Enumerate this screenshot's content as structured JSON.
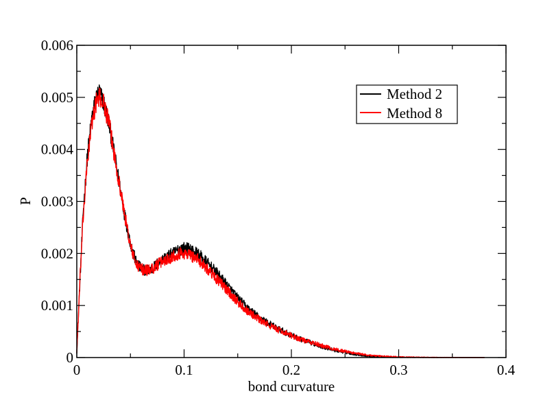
{
  "chart_data": {
    "type": "line",
    "title": "",
    "xlabel": "bond curvature",
    "ylabel": "P",
    "xlim": [
      0,
      0.4
    ],
    "ylim": [
      0,
      0.006
    ],
    "x_ticks": [
      0,
      0.1,
      0.2,
      0.3,
      0.4
    ],
    "x_tick_labels": [
      "0",
      "0.1",
      "0.2",
      "0.3",
      "0.4"
    ],
    "y_ticks": [
      0,
      0.001,
      0.002,
      0.003,
      0.004,
      0.005,
      0.006
    ],
    "y_tick_labels": [
      "0",
      "0.001",
      "0.002",
      "0.003",
      "0.004",
      "0.005",
      "0.006"
    ],
    "grid": false,
    "legend_position": "top-right",
    "series": [
      {
        "name": "Method 2",
        "color": "#000000",
        "noise": 0.00012,
        "x": [
          0,
          0.003,
          0.006,
          0.01,
          0.014,
          0.018,
          0.021,
          0.025,
          0.03,
          0.035,
          0.04,
          0.045,
          0.05,
          0.055,
          0.06,
          0.065,
          0.07,
          0.075,
          0.08,
          0.085,
          0.09,
          0.095,
          0.1,
          0.105,
          0.11,
          0.115,
          0.12,
          0.13,
          0.14,
          0.15,
          0.16,
          0.17,
          0.18,
          0.19,
          0.2,
          0.21,
          0.22,
          0.23,
          0.24,
          0.25,
          0.26,
          0.27,
          0.28,
          0.3,
          0.32,
          0.34,
          0.36,
          0.38
        ],
        "y": [
          0.0001,
          0.0015,
          0.0028,
          0.0039,
          0.0046,
          0.005,
          0.0051,
          0.0049,
          0.0045,
          0.0039,
          0.0033,
          0.0027,
          0.0022,
          0.00185,
          0.0017,
          0.00168,
          0.0017,
          0.0018,
          0.00188,
          0.00195,
          0.002,
          0.00208,
          0.0021,
          0.00208,
          0.00203,
          0.00195,
          0.00185,
          0.00163,
          0.00139,
          0.00114,
          0.00093,
          0.00077,
          0.00064,
          0.00053,
          0.00043,
          0.00034,
          0.00027,
          0.0002,
          0.00014,
          0.0001,
          6e-05,
          3e-05,
          1.5e-05,
          6e-06,
          2e-06,
          1e-06,
          0.0,
          0.0
        ]
      },
      {
        "name": "Method 8",
        "color": "#ff0000",
        "noise": 0.00012,
        "x": [
          0,
          0.003,
          0.006,
          0.01,
          0.014,
          0.018,
          0.021,
          0.025,
          0.03,
          0.035,
          0.04,
          0.045,
          0.05,
          0.055,
          0.06,
          0.065,
          0.07,
          0.075,
          0.08,
          0.085,
          0.09,
          0.095,
          0.1,
          0.105,
          0.11,
          0.115,
          0.12,
          0.13,
          0.14,
          0.15,
          0.16,
          0.17,
          0.18,
          0.19,
          0.2,
          0.21,
          0.22,
          0.23,
          0.24,
          0.25,
          0.26,
          0.27,
          0.28,
          0.3,
          0.32,
          0.34,
          0.36,
          0.38
        ],
        "y": [
          0.0001,
          0.0015,
          0.0027,
          0.0038,
          0.0045,
          0.0049,
          0.005,
          0.0049,
          0.0045,
          0.0039,
          0.0033,
          0.0027,
          0.00215,
          0.0018,
          0.0017,
          0.00168,
          0.0017,
          0.00178,
          0.00185,
          0.0019,
          0.00195,
          0.002,
          0.002,
          0.00198,
          0.00192,
          0.00185,
          0.00175,
          0.00152,
          0.0013,
          0.00107,
          0.00088,
          0.00073,
          0.00061,
          0.00051,
          0.00042,
          0.00034,
          0.00028,
          0.00022,
          0.00016,
          0.00012,
          8e-05,
          5e-05,
          3e-05,
          1.2e-05,
          5e-06,
          2e-06,
          1e-06,
          0.0
        ]
      }
    ]
  }
}
